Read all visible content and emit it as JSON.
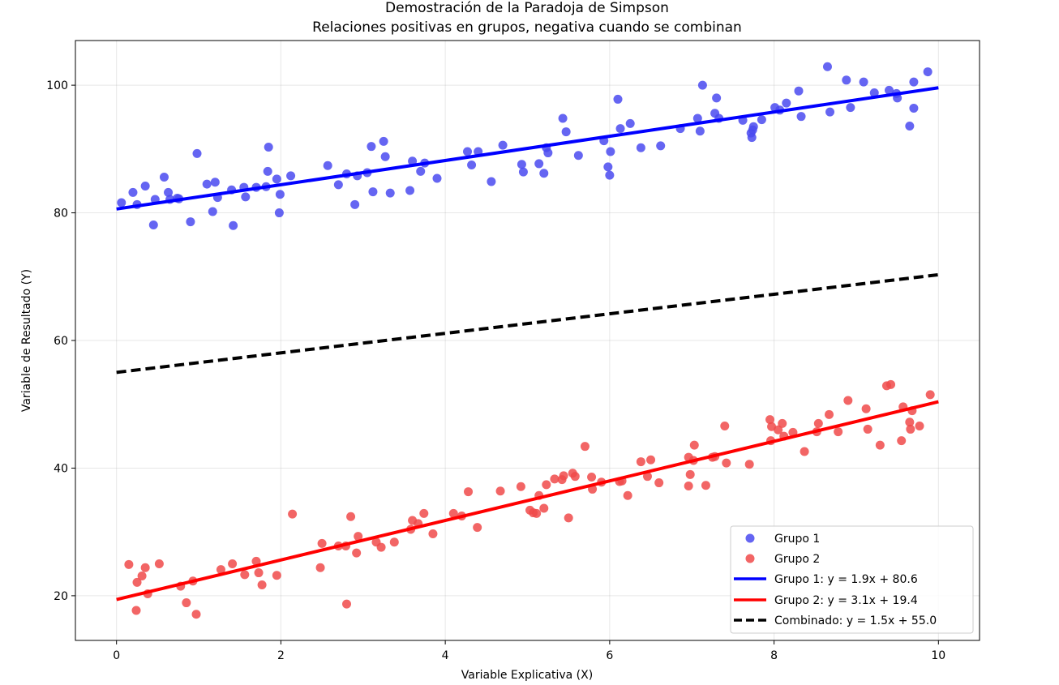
{
  "chart_data": {
    "type": "scatter",
    "title_line1": "Demostración de la Paradoja de Simpson",
    "title_line2": "Relaciones positivas en grupos, negativa cuando se combinan",
    "xlabel": "Variable Explicativa (X)",
    "ylabel": "Variable de Resultado (Y)",
    "xlim": [
      -0.5,
      10.5
    ],
    "ylim": [
      13,
      107
    ],
    "x_ticks": [
      0,
      2,
      4,
      6,
      8,
      10
    ],
    "y_ticks": [
      20,
      40,
      60,
      80,
      100
    ],
    "grid": true,
    "legend_position": "lower-right",
    "series": [
      {
        "name": "Grupo 1",
        "kind": "scatter",
        "color": "#4a4af0",
        "points": [
          [
            0.06,
            81.6
          ],
          [
            0.2,
            83.2
          ],
          [
            0.25,
            81.3
          ],
          [
            0.35,
            84.2
          ],
          [
            0.45,
            78.1
          ],
          [
            0.47,
            82.1
          ],
          [
            0.58,
            85.6
          ],
          [
            0.63,
            83.2
          ],
          [
            0.65,
            82.1
          ],
          [
            0.74,
            82.3
          ],
          [
            0.76,
            82.2
          ],
          [
            0.9,
            78.6
          ],
          [
            0.98,
            89.3
          ],
          [
            1.1,
            84.5
          ],
          [
            1.17,
            80.2
          ],
          [
            1.2,
            84.8
          ],
          [
            1.23,
            82.4
          ],
          [
            1.4,
            83.6
          ],
          [
            1.42,
            78.0
          ],
          [
            1.55,
            84.0
          ],
          [
            1.57,
            82.5
          ],
          [
            1.7,
            84.0
          ],
          [
            1.82,
            84.1
          ],
          [
            1.84,
            86.5
          ],
          [
            1.85,
            90.3
          ],
          [
            1.95,
            85.3
          ],
          [
            1.98,
            80.0
          ],
          [
            1.99,
            82.9
          ],
          [
            2.12,
            85.8
          ],
          [
            2.57,
            87.4
          ],
          [
            2.7,
            84.4
          ],
          [
            2.8,
            86.1
          ],
          [
            2.9,
            81.3
          ],
          [
            2.93,
            85.8
          ],
          [
            3.05,
            86.3
          ],
          [
            3.1,
            90.4
          ],
          [
            3.12,
            83.3
          ],
          [
            3.25,
            91.2
          ],
          [
            3.27,
            88.8
          ],
          [
            3.33,
            83.1
          ],
          [
            3.57,
            83.5
          ],
          [
            3.6,
            88.1
          ],
          [
            3.7,
            86.5
          ],
          [
            3.75,
            87.8
          ],
          [
            3.9,
            85.4
          ],
          [
            4.27,
            89.6
          ],
          [
            4.32,
            87.5
          ],
          [
            4.4,
            89.6
          ],
          [
            4.56,
            84.9
          ],
          [
            4.7,
            90.6
          ],
          [
            4.93,
            87.6
          ],
          [
            4.95,
            86.4
          ],
          [
            5.14,
            87.7
          ],
          [
            5.2,
            86.2
          ],
          [
            5.23,
            90.2
          ],
          [
            5.25,
            89.4
          ],
          [
            5.43,
            94.8
          ],
          [
            5.47,
            92.7
          ],
          [
            5.62,
            89.0
          ],
          [
            5.93,
            91.3
          ],
          [
            5.98,
            87.2
          ],
          [
            6.0,
            85.9
          ],
          [
            6.01,
            89.6
          ],
          [
            6.1,
            97.8
          ],
          [
            6.13,
            93.2
          ],
          [
            6.25,
            94.0
          ],
          [
            6.38,
            90.2
          ],
          [
            6.62,
            90.5
          ],
          [
            6.86,
            93.2
          ],
          [
            7.07,
            94.8
          ],
          [
            7.1,
            92.8
          ],
          [
            7.13,
            100.0
          ],
          [
            7.28,
            95.6
          ],
          [
            7.3,
            98.0
          ],
          [
            7.33,
            94.8
          ],
          [
            7.62,
            94.5
          ],
          [
            7.72,
            92.5
          ],
          [
            7.73,
            91.8
          ],
          [
            7.75,
            93.5
          ],
          [
            7.74,
            93.0
          ],
          [
            7.85,
            94.6
          ],
          [
            8.01,
            96.5
          ],
          [
            8.07,
            96.1
          ],
          [
            8.15,
            97.2
          ],
          [
            8.3,
            99.1
          ],
          [
            8.33,
            95.1
          ],
          [
            8.65,
            102.9
          ],
          [
            8.68,
            95.8
          ],
          [
            8.88,
            100.8
          ],
          [
            8.93,
            96.5
          ],
          [
            9.09,
            100.5
          ],
          [
            9.22,
            98.8
          ],
          [
            9.4,
            99.2
          ],
          [
            9.49,
            98.7
          ],
          [
            9.5,
            98.0
          ],
          [
            9.65,
            93.6
          ],
          [
            9.7,
            100.5
          ],
          [
            9.7,
            96.4
          ],
          [
            9.87,
            102.1
          ]
        ]
      },
      {
        "name": "Grupo 2",
        "kind": "scatter",
        "color": "#f04a4a",
        "points": [
          [
            0.15,
            24.9
          ],
          [
            0.24,
            17.7
          ],
          [
            0.25,
            22.1
          ],
          [
            0.31,
            23.1
          ],
          [
            0.35,
            24.4
          ],
          [
            0.38,
            20.3
          ],
          [
            0.52,
            25.0
          ],
          [
            0.78,
            21.5
          ],
          [
            0.85,
            18.9
          ],
          [
            0.93,
            22.3
          ],
          [
            0.97,
            17.1
          ],
          [
            1.27,
            24.1
          ],
          [
            1.41,
            25.0
          ],
          [
            1.56,
            23.3
          ],
          [
            1.7,
            25.4
          ],
          [
            1.73,
            23.6
          ],
          [
            1.77,
            21.7
          ],
          [
            1.95,
            23.2
          ],
          [
            2.14,
            32.8
          ],
          [
            2.48,
            24.4
          ],
          [
            2.5,
            28.2
          ],
          [
            2.7,
            27.8
          ],
          [
            2.79,
            27.8
          ],
          [
            2.8,
            18.7
          ],
          [
            2.85,
            32.4
          ],
          [
            2.92,
            26.7
          ],
          [
            2.94,
            29.3
          ],
          [
            3.16,
            28.4
          ],
          [
            3.22,
            27.6
          ],
          [
            3.38,
            28.4
          ],
          [
            3.58,
            30.4
          ],
          [
            3.6,
            31.8
          ],
          [
            3.67,
            31.3
          ],
          [
            3.74,
            32.9
          ],
          [
            3.85,
            29.7
          ],
          [
            4.1,
            32.9
          ],
          [
            4.2,
            32.5
          ],
          [
            4.28,
            36.3
          ],
          [
            4.39,
            30.7
          ],
          [
            4.67,
            36.4
          ],
          [
            4.92,
            37.1
          ],
          [
            5.03,
            33.4
          ],
          [
            5.07,
            33.0
          ],
          [
            5.11,
            32.9
          ],
          [
            5.14,
            35.7
          ],
          [
            5.2,
            33.7
          ],
          [
            5.23,
            37.4
          ],
          [
            5.33,
            38.3
          ],
          [
            5.42,
            38.2
          ],
          [
            5.44,
            38.8
          ],
          [
            5.5,
            32.2
          ],
          [
            5.55,
            39.2
          ],
          [
            5.58,
            38.7
          ],
          [
            5.7,
            43.4
          ],
          [
            5.78,
            38.6
          ],
          [
            5.79,
            36.7
          ],
          [
            5.9,
            37.8
          ],
          [
            6.12,
            37.9
          ],
          [
            6.15,
            38.0
          ],
          [
            6.22,
            35.7
          ],
          [
            6.38,
            41.0
          ],
          [
            6.46,
            38.7
          ],
          [
            6.5,
            41.3
          ],
          [
            6.6,
            37.7
          ],
          [
            6.96,
            37.2
          ],
          [
            6.96,
            41.7
          ],
          [
            6.98,
            39.0
          ],
          [
            7.02,
            41.2
          ],
          [
            7.03,
            43.6
          ],
          [
            7.17,
            37.3
          ],
          [
            7.25,
            41.7
          ],
          [
            7.28,
            41.8
          ],
          [
            7.4,
            46.6
          ],
          [
            7.42,
            40.8
          ],
          [
            7.7,
            40.6
          ],
          [
            7.95,
            47.6
          ],
          [
            7.96,
            44.3
          ],
          [
            7.97,
            46.5
          ],
          [
            8.05,
            46.0
          ],
          [
            8.1,
            47.0
          ],
          [
            8.12,
            45.0
          ],
          [
            8.23,
            45.6
          ],
          [
            8.37,
            42.6
          ],
          [
            8.52,
            45.7
          ],
          [
            8.54,
            47.0
          ],
          [
            8.67,
            48.4
          ],
          [
            8.78,
            45.7
          ],
          [
            8.9,
            50.6
          ],
          [
            9.12,
            49.3
          ],
          [
            9.14,
            46.1
          ],
          [
            9.29,
            43.6
          ],
          [
            9.37,
            52.9
          ],
          [
            9.42,
            53.1
          ],
          [
            9.55,
            44.3
          ],
          [
            9.57,
            49.6
          ],
          [
            9.65,
            47.2
          ],
          [
            9.66,
            46.1
          ],
          [
            9.68,
            49.0
          ],
          [
            9.77,
            46.6
          ],
          [
            9.9,
            51.5
          ]
        ]
      },
      {
        "name": "Grupo 1: y = 1.9x + 80.6",
        "kind": "line",
        "color": "#0000ff",
        "dash": false,
        "slope": 1.9,
        "intercept": 80.6,
        "x_range": [
          0,
          10
        ]
      },
      {
        "name": "Grupo 2: y = 3.1x + 19.4",
        "kind": "line",
        "color": "#ff0000",
        "dash": false,
        "slope": 3.1,
        "intercept": 19.4,
        "x_range": [
          0,
          10
        ]
      },
      {
        "name": "Combinado: y = 1.5x + 55.0",
        "kind": "line",
        "color": "#000000",
        "dash": true,
        "slope": 1.53,
        "intercept": 55.0,
        "x_range": [
          0,
          10
        ]
      }
    ]
  }
}
